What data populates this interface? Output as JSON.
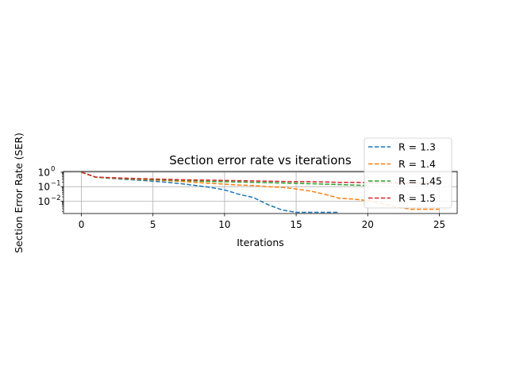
{
  "chart_data": {
    "type": "line",
    "title": "Section error rate vs iterations",
    "xlabel": "Iterations",
    "ylabel": "Section Error Rate (SER)",
    "xlim": [
      -1.25,
      26.25
    ],
    "ylim_log10": [
      -2.85,
      0.05
    ],
    "yscale": "log",
    "grid": true,
    "legend_position": "top-right",
    "x_ticks": [
      0,
      5,
      10,
      15,
      20,
      25
    ],
    "x_tick_labels": [
      "0",
      "5",
      "10",
      "15",
      "20",
      "25"
    ],
    "y_ticks_log10": [
      0,
      -1,
      -2
    ],
    "y_tick_labels": [
      "10",
      "10",
      "10"
    ],
    "y_tick_exponents": [
      "0",
      "−1",
      "−2"
    ],
    "series": [
      {
        "name": "R = 1.3",
        "color": "#1f77b4",
        "x": [
          0,
          1,
          2,
          3,
          4,
          5,
          6,
          7,
          8,
          9,
          10,
          11,
          12,
          13,
          14,
          15,
          16,
          17,
          18
        ],
        "y": [
          1.0,
          0.45,
          0.38,
          0.32,
          0.28,
          0.24,
          0.2,
          0.16,
          0.12,
          0.09,
          0.06,
          0.03,
          0.018,
          0.006,
          0.0025,
          0.0017,
          0.0017,
          0.0017,
          0.0017
        ]
      },
      {
        "name": "R = 1.4",
        "color": "#ff7f0e",
        "x": [
          0,
          1,
          2,
          3,
          4,
          5,
          6,
          7,
          8,
          9,
          10,
          11,
          12,
          13,
          14,
          15,
          16,
          17,
          18,
          19,
          20,
          21,
          22,
          23,
          24,
          25
        ],
        "y": [
          1.0,
          0.45,
          0.4,
          0.35,
          0.32,
          0.29,
          0.26,
          0.23,
          0.2,
          0.17,
          0.15,
          0.13,
          0.12,
          0.1,
          0.09,
          0.07,
          0.05,
          0.03,
          0.016,
          0.014,
          0.011,
          0.007,
          0.004,
          0.0028,
          0.0028,
          0.0028
        ]
      },
      {
        "name": "R = 1.45",
        "color": "#2ca02c",
        "x": [
          0,
          1,
          2,
          3,
          4,
          5,
          6,
          7,
          8,
          9,
          10,
          11,
          12,
          13,
          14,
          15,
          16,
          17,
          18,
          19,
          20
        ],
        "y": [
          1.0,
          0.45,
          0.41,
          0.37,
          0.34,
          0.31,
          0.29,
          0.27,
          0.25,
          0.23,
          0.22,
          0.21,
          0.2,
          0.19,
          0.18,
          0.17,
          0.16,
          0.15,
          0.14,
          0.13,
          0.12
        ]
      },
      {
        "name": "R = 1.5",
        "color": "#d62728",
        "x": [
          0,
          1,
          2,
          3,
          4,
          5,
          6,
          7,
          8,
          9,
          10,
          11,
          12,
          13,
          14,
          15,
          16,
          17,
          18,
          19,
          20,
          21,
          22,
          23,
          24,
          25
        ],
        "y": [
          1.0,
          0.46,
          0.42,
          0.39,
          0.36,
          0.34,
          0.32,
          0.3,
          0.29,
          0.28,
          0.27,
          0.26,
          0.25,
          0.24,
          0.23,
          0.22,
          0.22,
          0.21,
          0.2,
          0.2,
          0.19,
          0.19,
          0.18,
          0.18,
          0.17,
          0.17
        ]
      }
    ]
  }
}
